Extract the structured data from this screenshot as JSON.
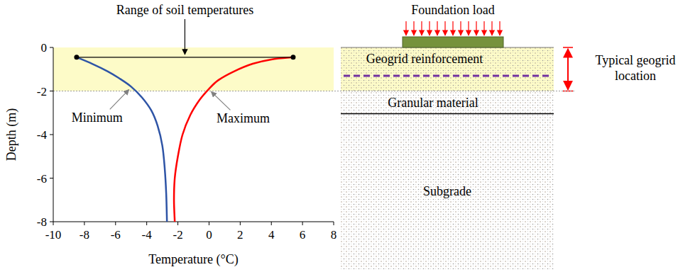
{
  "chart_data": {
    "type": "line",
    "title": "Range of soil temperatures",
    "xlabel": "Temperature (°C)",
    "ylabel": "Depth (m)",
    "xlim": [
      -10,
      8
    ],
    "ylim": [
      -8,
      0
    ],
    "xticks": [
      -10,
      -8,
      -6,
      -4,
      -2,
      0,
      2,
      4,
      6,
      8
    ],
    "yticks": [
      0,
      -2,
      -4,
      -6,
      -8
    ],
    "grid": false,
    "highlight_range": [
      -2,
      0
    ],
    "series": [
      {
        "name": "Minimum",
        "color": "#2e54a6",
        "line_style": "solid",
        "x": [
          -8.5,
          -7.5,
          -6.5,
          -5.8,
          -5,
          -4.3,
          -3.7,
          -3.3,
          -3,
          -2.85,
          -2.75,
          -2.7
        ],
        "values": [
          -0.45,
          -0.75,
          -1.1,
          -1.4,
          -1.8,
          -2.3,
          -2.9,
          -3.6,
          -4.5,
          -5.5,
          -6.7,
          -8
        ]
      },
      {
        "name": "Maximum",
        "color": "#ff0000",
        "line_style": "solid",
        "x": [
          5.4,
          4,
          2.8,
          1.6,
          0.6,
          0,
          -0.6,
          -1.2,
          -1.7,
          -2,
          -2.2,
          -2.25,
          -2.2
        ],
        "values": [
          -0.45,
          -0.55,
          -0.75,
          -1.1,
          -1.5,
          -1.9,
          -2.4,
          -3.1,
          -4,
          -5,
          -6,
          -7,
          -8
        ]
      }
    ]
  },
  "diagram": {
    "load_label": "Foundation load",
    "layers": [
      "Geogrid reinforcement",
      "Granular material",
      "Subgrade"
    ],
    "location_label": "Typical geogrid location"
  }
}
